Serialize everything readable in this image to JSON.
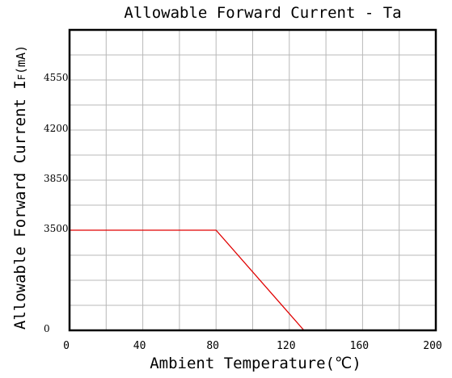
{
  "chart_data": {
    "type": "line",
    "title": "Allowable Forward Current - Ta",
    "xlabel": "Ambient Temperature(℃)",
    "ylabel": "Allowable Forward Current  I",
    "ylabel_sub": "F",
    "ylabel_unit": "(mA)",
    "xlim": [
      0,
      200
    ],
    "x_ticks": [
      "0",
      "40",
      "80",
      "120",
      "160",
      "200"
    ],
    "x_tick_values": [
      0,
      40,
      80,
      120,
      160,
      200
    ],
    "y_ticks": [
      "0",
      "3500",
      "3850",
      "4200",
      "4550"
    ],
    "y_tick_values": [
      0,
      3500,
      3850,
      4200,
      4550
    ],
    "grid": true,
    "series": [
      {
        "x": [
          0,
          80,
          128
        ],
        "y": [
          3500,
          3500,
          0
        ],
        "color": "#e00000"
      }
    ]
  }
}
